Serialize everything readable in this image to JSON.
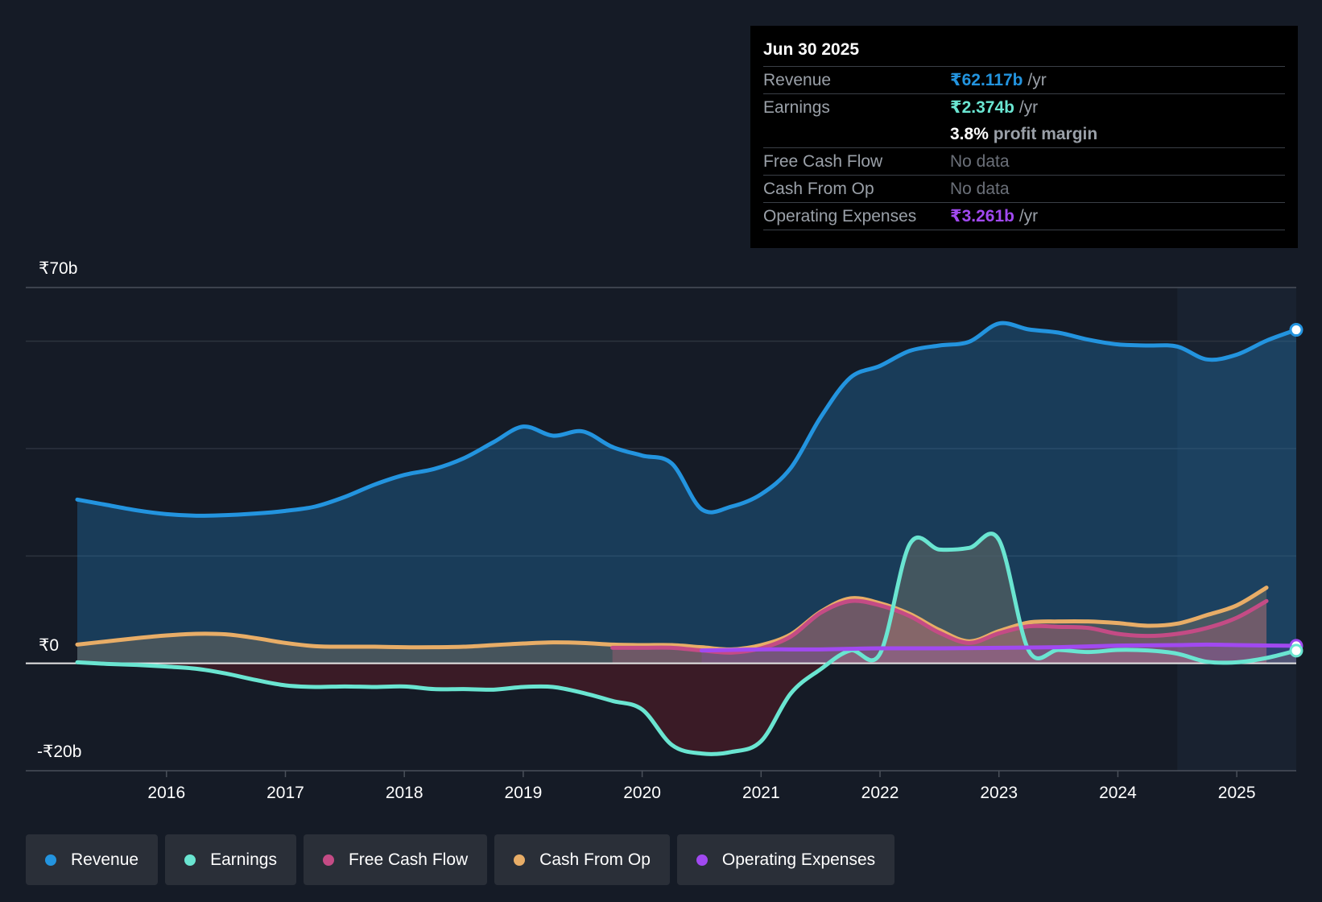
{
  "tooltip": {
    "date": "Jun 30 2025",
    "rows": {
      "revenue": {
        "label": "Revenue",
        "value": "₹62.117b",
        "unit": "/yr"
      },
      "earnings": {
        "label": "Earnings",
        "value": "₹2.374b",
        "unit": "/yr"
      },
      "margin": {
        "value": "3.8%",
        "text": "profit margin"
      },
      "fcf": {
        "label": "Free Cash Flow",
        "value": "No data"
      },
      "cfo": {
        "label": "Cash From Op",
        "value": "No data"
      },
      "opex": {
        "label": "Operating Expenses",
        "value": "₹3.261b",
        "unit": "/yr"
      }
    }
  },
  "legend": [
    {
      "label": "Revenue",
      "color": "#2394df"
    },
    {
      "label": "Earnings",
      "color": "#6ae5d1"
    },
    {
      "label": "Free Cash Flow",
      "color": "#c44b85"
    },
    {
      "label": "Cash From Op",
      "color": "#e8ad67"
    },
    {
      "label": "Operating Expenses",
      "color": "#a149f0"
    }
  ],
  "chart_data": {
    "type": "line",
    "y_label_top": "₹70b",
    "y_label_zero": "₹0",
    "y_label_bottom": "-₹20b",
    "ylim": [
      -20,
      70
    ],
    "xlim": [
      2015.25,
      2025.5
    ],
    "x_ticks": [
      {
        "value": 2016,
        "label": "2016"
      },
      {
        "value": 2017,
        "label": "2017"
      },
      {
        "value": 2018,
        "label": "2018"
      },
      {
        "value": 2019,
        "label": "2019"
      },
      {
        "value": 2020,
        "label": "2020"
      },
      {
        "value": 2021,
        "label": "2021"
      },
      {
        "value": 2022,
        "label": "2022"
      },
      {
        "value": 2023,
        "label": "2023"
      },
      {
        "value": 2024,
        "label": "2024"
      },
      {
        "value": 2025,
        "label": "2025"
      }
    ],
    "forecast_start": 2024.5,
    "series": [
      {
        "name": "Revenue",
        "color": "#2394df",
        "points": [
          [
            2015.25,
            30.5
          ],
          [
            2015.5,
            29.5
          ],
          [
            2015.75,
            28.5
          ],
          [
            2016,
            27.8
          ],
          [
            2016.25,
            27.5
          ],
          [
            2016.5,
            27.6
          ],
          [
            2016.75,
            27.9
          ],
          [
            2017,
            28.4
          ],
          [
            2017.25,
            29.2
          ],
          [
            2017.5,
            31
          ],
          [
            2017.75,
            33.3
          ],
          [
            2018,
            35.1
          ],
          [
            2018.25,
            36.2
          ],
          [
            2018.5,
            38.2
          ],
          [
            2018.75,
            41.2
          ],
          [
            2019,
            44.1
          ],
          [
            2019.25,
            42.4
          ],
          [
            2019.5,
            43.2
          ],
          [
            2019.75,
            40.3
          ],
          [
            2020,
            38.7
          ],
          [
            2020.25,
            37.2
          ],
          [
            2020.5,
            28.7
          ],
          [
            2020.75,
            29.2
          ],
          [
            2021,
            31.5
          ],
          [
            2021.25,
            36.4
          ],
          [
            2021.5,
            45.8
          ],
          [
            2021.75,
            53.2
          ],
          [
            2022,
            55.4
          ],
          [
            2022.25,
            58.2
          ],
          [
            2022.5,
            59.2
          ],
          [
            2022.75,
            59.9
          ],
          [
            2023,
            63.3
          ],
          [
            2023.25,
            62.2
          ],
          [
            2023.5,
            61.6
          ],
          [
            2023.75,
            60.3
          ],
          [
            2024,
            59.4
          ],
          [
            2024.25,
            59.2
          ],
          [
            2024.5,
            59
          ],
          [
            2024.75,
            56.6
          ],
          [
            2025,
            57.5
          ],
          [
            2025.25,
            60.1
          ],
          [
            2025.5,
            62.117
          ]
        ]
      },
      {
        "name": "Earnings",
        "color": "#6ae5d1",
        "points": [
          [
            2015.25,
            0.2
          ],
          [
            2015.5,
            -0.1
          ],
          [
            2015.75,
            -0.3
          ],
          [
            2016,
            -0.6
          ],
          [
            2016.25,
            -1
          ],
          [
            2016.5,
            -1.9
          ],
          [
            2016.75,
            -3.1
          ],
          [
            2017,
            -4.1
          ],
          [
            2017.25,
            -4.4
          ],
          [
            2017.5,
            -4.3
          ],
          [
            2017.75,
            -4.4
          ],
          [
            2018,
            -4.3
          ],
          [
            2018.25,
            -4.8
          ],
          [
            2018.5,
            -4.8
          ],
          [
            2018.75,
            -4.9
          ],
          [
            2019,
            -4.4
          ],
          [
            2019.25,
            -4.4
          ],
          [
            2019.5,
            -5.5
          ],
          [
            2019.75,
            -7
          ],
          [
            2020,
            -8.6
          ],
          [
            2020.25,
            -15.2
          ],
          [
            2020.5,
            -16.8
          ],
          [
            2020.75,
            -16.5
          ],
          [
            2021,
            -14.5
          ],
          [
            2021.25,
            -5.6
          ],
          [
            2021.5,
            -1.1
          ],
          [
            2021.75,
            2.4
          ],
          [
            2022,
            1.8
          ],
          [
            2022.25,
            22.2
          ],
          [
            2022.5,
            21.2
          ],
          [
            2022.75,
            21.5
          ],
          [
            2023,
            23
          ],
          [
            2023.25,
            2.4
          ],
          [
            2023.5,
            2.5
          ],
          [
            2023.75,
            2.1
          ],
          [
            2024,
            2.5
          ],
          [
            2024.25,
            2.4
          ],
          [
            2024.5,
            1.8
          ],
          [
            2024.75,
            0.3
          ],
          [
            2025,
            0.2
          ],
          [
            2025.25,
            1
          ],
          [
            2025.5,
            2.374
          ]
        ]
      },
      {
        "name": "Free Cash Flow",
        "color": "#c44b85",
        "points": [
          [
            2019.75,
            2.9
          ],
          [
            2020,
            2.9
          ],
          [
            2020.25,
            2.9
          ],
          [
            2020.5,
            2.4
          ],
          [
            2020.75,
            2
          ],
          [
            2021,
            2.8
          ],
          [
            2021.25,
            5
          ],
          [
            2021.5,
            9.4
          ],
          [
            2021.75,
            11.6
          ],
          [
            2022,
            10.8
          ],
          [
            2022.25,
            8.8
          ],
          [
            2022.5,
            5.7
          ],
          [
            2022.75,
            3.8
          ],
          [
            2023,
            5.6
          ],
          [
            2023.25,
            6.9
          ],
          [
            2023.5,
            6.8
          ],
          [
            2023.75,
            6.6
          ],
          [
            2024,
            5.5
          ],
          [
            2024.25,
            5.1
          ],
          [
            2024.5,
            5.5
          ],
          [
            2024.75,
            6.6
          ],
          [
            2025,
            8.5
          ],
          [
            2025.25,
            11.6
          ]
        ],
        "hidden_segment": [
          [
            2015.25,
            3.5
          ],
          [
            2016,
            5
          ],
          [
            2016.5,
            5.3
          ],
          [
            2017,
            3.8
          ],
          [
            2017.5,
            3.2
          ],
          [
            2018,
            3
          ],
          [
            2018.5,
            3.2
          ],
          [
            2019,
            3.6
          ],
          [
            2019.5,
            3.5
          ]
        ]
      },
      {
        "name": "Cash From Op",
        "color": "#e8ad67",
        "points": [
          [
            2015.25,
            3.5
          ],
          [
            2015.5,
            4.1
          ],
          [
            2015.75,
            4.7
          ],
          [
            2016,
            5.2
          ],
          [
            2016.25,
            5.5
          ],
          [
            2016.5,
            5.4
          ],
          [
            2016.75,
            4.7
          ],
          [
            2017,
            3.8
          ],
          [
            2017.25,
            3.2
          ],
          [
            2017.5,
            3.1
          ],
          [
            2017.75,
            3.1
          ],
          [
            2018,
            3
          ],
          [
            2018.25,
            3
          ],
          [
            2018.5,
            3.1
          ],
          [
            2018.75,
            3.4
          ],
          [
            2019,
            3.7
          ],
          [
            2019.25,
            3.9
          ],
          [
            2019.5,
            3.8
          ],
          [
            2019.75,
            3.5
          ],
          [
            2020,
            3.4
          ],
          [
            2020.25,
            3.4
          ],
          [
            2020.5,
            3
          ],
          [
            2020.75,
            2.6
          ],
          [
            2021,
            3.4
          ],
          [
            2021.25,
            5.4
          ],
          [
            2021.5,
            9.6
          ],
          [
            2021.75,
            12.1
          ],
          [
            2022,
            11.2
          ],
          [
            2022.25,
            9.2
          ],
          [
            2022.5,
            6.2
          ],
          [
            2022.75,
            4.1
          ],
          [
            2023,
            6
          ],
          [
            2023.25,
            7.6
          ],
          [
            2023.5,
            7.8
          ],
          [
            2023.75,
            7.8
          ],
          [
            2024,
            7.5
          ],
          [
            2024.25,
            7
          ],
          [
            2024.5,
            7.4
          ],
          [
            2024.75,
            9
          ],
          [
            2025,
            10.8
          ],
          [
            2025.25,
            14.1
          ]
        ]
      },
      {
        "name": "Operating Expenses",
        "color": "#a149f0",
        "points": [
          [
            2020.5,
            2.4
          ],
          [
            2020.75,
            2.5
          ],
          [
            2021,
            2.6
          ],
          [
            2021.25,
            2.6
          ],
          [
            2021.5,
            2.6
          ],
          [
            2021.75,
            2.7
          ],
          [
            2022,
            2.8
          ],
          [
            2022.5,
            2.8
          ],
          [
            2023,
            2.9
          ],
          [
            2023.5,
            3
          ],
          [
            2024,
            3.3
          ],
          [
            2024.5,
            3.4
          ],
          [
            2024.75,
            3.5
          ],
          [
            2025,
            3.4
          ],
          [
            2025.5,
            3.261
          ]
        ]
      }
    ]
  }
}
